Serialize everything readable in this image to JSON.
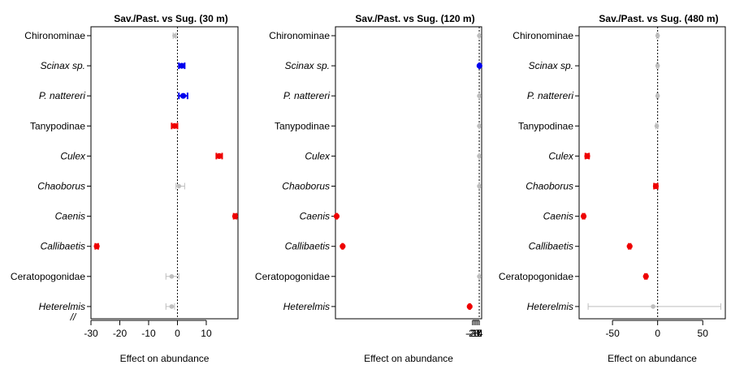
{
  "colors": {
    "blue": "#0000ee",
    "red": "#ee0000",
    "grey": "#bebebe",
    "axis": "#000000"
  },
  "chart_data": [
    {
      "type": "scatter",
      "title": "Sav./Past. vs Sug. (30 m)",
      "xlabel": "Effect on abundance",
      "xlim": [
        -30,
        21
      ],
      "xticks": [
        -30,
        -20,
        -10,
        0,
        10
      ],
      "axis_break": "//",
      "categories": [
        "Chironominae",
        "Scinax sp.",
        "P. nattereri",
        "Tanypodinae",
        "Culex",
        "Chaoborus",
        "Caenis",
        "Callibaetis",
        "Ceratopogonidae",
        "Heterelmis"
      ],
      "italic": [
        false,
        true,
        true,
        false,
        true,
        true,
        true,
        true,
        false,
        true
      ],
      "points": [
        {
          "est": -1,
          "lo": -1.5,
          "hi": -0.5,
          "color": "grey"
        },
        {
          "est": 1.5,
          "lo": 0.5,
          "hi": 2.5,
          "color": "blue"
        },
        {
          "est": 2,
          "lo": 0.5,
          "hi": 3.5,
          "color": "blue"
        },
        {
          "est": -1,
          "lo": -2,
          "hi": 0,
          "color": "red"
        },
        {
          "est": 14.5,
          "lo": 13.5,
          "hi": 15.5,
          "color": "red"
        },
        {
          "est": 0.5,
          "lo": -0.5,
          "hi": 2.5,
          "color": "grey"
        },
        {
          "est": 20,
          "lo": 19.5,
          "hi": 20.5,
          "color": "red"
        },
        {
          "est": -28,
          "lo": -28.5,
          "hi": -27.5,
          "color": "red"
        },
        {
          "est": -2,
          "lo": -4,
          "hi": 0.5,
          "color": "grey"
        },
        {
          "est": -2,
          "lo": -4,
          "hi": -1,
          "color": "grey"
        }
      ]
    },
    {
      "type": "scatter",
      "title": "Sav./Past. vs Sug. (120 m)",
      "xlabel": "Effect on abundance",
      "xlim": [
        -600,
        10
      ],
      "xticks": [
        -28,
        -21,
        -14,
        -7,
        0
      ],
      "xticklabels": [
        "-28",
        "-21",
        "-14",
        "-7",
        "0"
      ],
      "categories": [
        "Chironominae",
        "Scinax sp.",
        "P. nattereri",
        "Tanypodinae",
        "Culex",
        "Chaoborus",
        "Caenis",
        "Callibaetis",
        "Ceratopogonidae",
        "Heterelmis"
      ],
      "italic": [
        false,
        true,
        true,
        false,
        true,
        true,
        true,
        true,
        false,
        true
      ],
      "points": [
        {
          "est": 0,
          "lo": -1,
          "hi": 1,
          "color": "grey"
        },
        {
          "est": 1,
          "lo": 0,
          "hi": 2,
          "color": "blue"
        },
        {
          "est": 0,
          "lo": -1,
          "hi": 1,
          "color": "grey"
        },
        {
          "est": 0,
          "lo": -1,
          "hi": 1,
          "color": "grey"
        },
        {
          "est": 0,
          "lo": -1,
          "hi": 1,
          "color": "grey"
        },
        {
          "est": 0,
          "lo": -1,
          "hi": 1,
          "color": "grey"
        },
        {
          "est": -595,
          "lo": -597,
          "hi": -593,
          "color": "red"
        },
        {
          "est": -570,
          "lo": -572,
          "hi": -568,
          "color": "red"
        },
        {
          "est": 0,
          "lo": -1,
          "hi": 1,
          "color": "grey"
        },
        {
          "est": -40,
          "lo": -42,
          "hi": -38,
          "color": "red"
        }
      ]
    },
    {
      "type": "scatter",
      "title": "Sav./Past. vs Sug. (480 m)",
      "xlabel": "Effect on abundance",
      "xlim": [
        -87,
        75
      ],
      "xticks": [
        -50,
        0,
        50
      ],
      "categories": [
        "Chironominae",
        "Scinax sp.",
        "P. nattereri",
        "Tanypodinae",
        "Culex",
        "Chaoborus",
        "Caenis",
        "Callibaetis",
        "Ceratopogonidae",
        "Heterelmis"
      ],
      "italic": [
        false,
        true,
        true,
        false,
        true,
        true,
        true,
        true,
        false,
        true
      ],
      "points": [
        {
          "est": 0,
          "lo": -1,
          "hi": 1,
          "color": "grey"
        },
        {
          "est": 0,
          "lo": -1,
          "hi": 1,
          "color": "grey"
        },
        {
          "est": 0,
          "lo": -1,
          "hi": 1,
          "color": "grey"
        },
        {
          "est": -1,
          "lo": -2,
          "hi": 0,
          "color": "grey"
        },
        {
          "est": -78,
          "lo": -80,
          "hi": -76,
          "color": "red"
        },
        {
          "est": -2,
          "lo": -4,
          "hi": 0,
          "color": "red"
        },
        {
          "est": -82,
          "lo": -83,
          "hi": -81,
          "color": "red"
        },
        {
          "est": -31,
          "lo": -32,
          "hi": -30,
          "color": "red"
        },
        {
          "est": -13,
          "lo": -14,
          "hi": -12,
          "color": "red"
        },
        {
          "est": -5,
          "lo": -77,
          "hi": 70,
          "color": "grey"
        }
      ]
    }
  ]
}
